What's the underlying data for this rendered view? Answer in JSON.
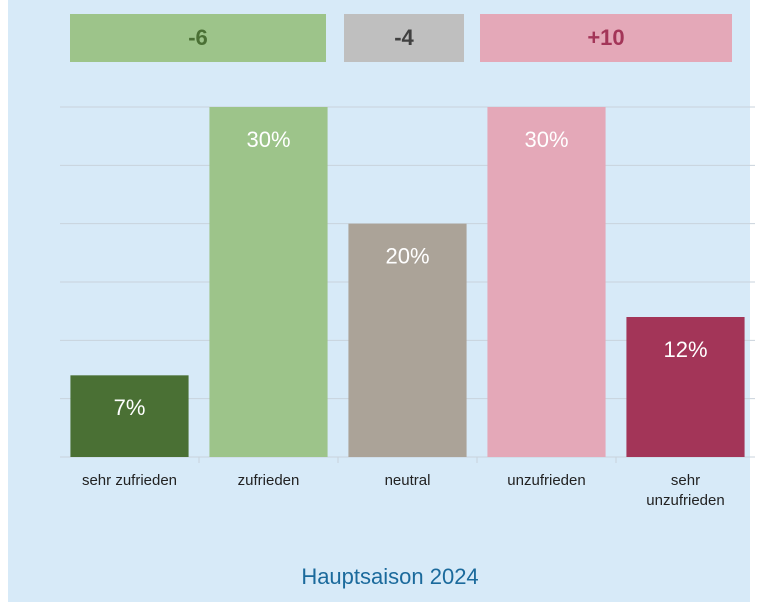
{
  "chart_data": {
    "type": "bar",
    "title": "Hauptsaison 2024",
    "categories": [
      "sehr zufrieden",
      "zufrieden",
      "neutral",
      "unzufrieden",
      "sehr unzufrieden"
    ],
    "values": [
      7,
      30,
      20,
      30,
      12
    ],
    "value_labels": [
      "7%",
      "30%",
      "20%",
      "30%",
      "12%"
    ],
    "colors": [
      "#4a7034",
      "#9dc48a",
      "#aba398",
      "#e4a8b8",
      "#a33558"
    ],
    "ylim": [
      0,
      30
    ],
    "yticks": [
      0,
      5,
      10,
      15,
      20,
      25,
      30
    ],
    "grid": true,
    "annotations": [
      {
        "text": "-6",
        "color": "#9dc48a",
        "text_color": "#4a7034"
      },
      {
        "text": "-4",
        "color": "#bfbfbf",
        "text_color": "#404040"
      },
      {
        "text": "+10",
        "color": "#e4a8b8",
        "text_color": "#a33558"
      }
    ]
  }
}
